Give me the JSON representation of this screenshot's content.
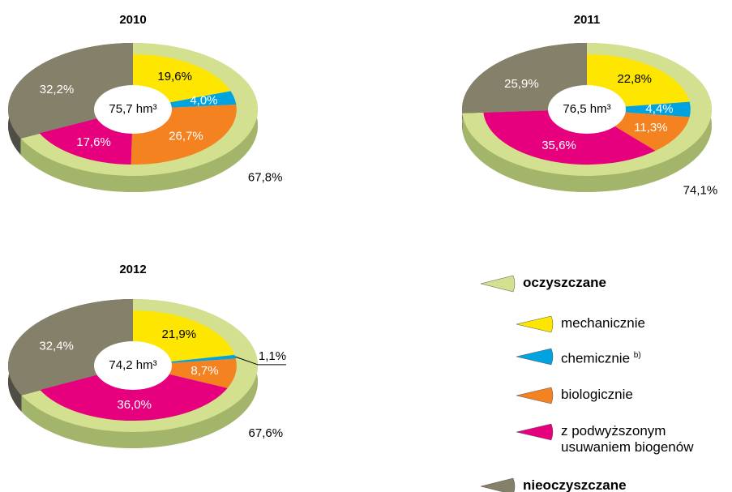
{
  "chart_data": [
    {
      "type": "pie",
      "title": "2010",
      "center_label": "75,7 hm³",
      "values": [
        67.8,
        19.6,
        4.0,
        26.7,
        17.6,
        32.2
      ],
      "value_labels": [
        "67,8%",
        "19,6%",
        "4,0%",
        "26,7%",
        "17,6%",
        "32,2%"
      ]
    },
    {
      "type": "pie",
      "title": "2011",
      "center_label": "76,5 hm³",
      "values": [
        74.1,
        22.8,
        4.4,
        11.3,
        35.6,
        25.9
      ],
      "value_labels": [
        "74,1%",
        "22,8%",
        "4,4%",
        "11,3%",
        "35,6%",
        "25,9%"
      ]
    },
    {
      "type": "pie",
      "title": "2012",
      "center_label": "74,2 hm³",
      "values": [
        67.6,
        21.9,
        1.1,
        8.7,
        36.0,
        32.4
      ],
      "value_labels": [
        "67,6%",
        "21,9%",
        "1,1%",
        "8,7%",
        "36,0%",
        "32,4%"
      ]
    }
  ],
  "legend": {
    "categories": [
      "oczyszczane",
      "mechanicznie",
      "chemicznie",
      "biologicznie",
      "z podwyższonym\nusuwaniem biogenów",
      "nieoczyszczane"
    ],
    "colors": [
      "#d3e08f",
      "#ffe600",
      "#00a3e0",
      "#f58220",
      "#e6007e",
      "#858069"
    ],
    "side_colors": [
      "#a3b56a",
      null,
      null,
      null,
      null,
      "#4f4d45"
    ],
    "notes": {
      "2": "b)"
    }
  }
}
